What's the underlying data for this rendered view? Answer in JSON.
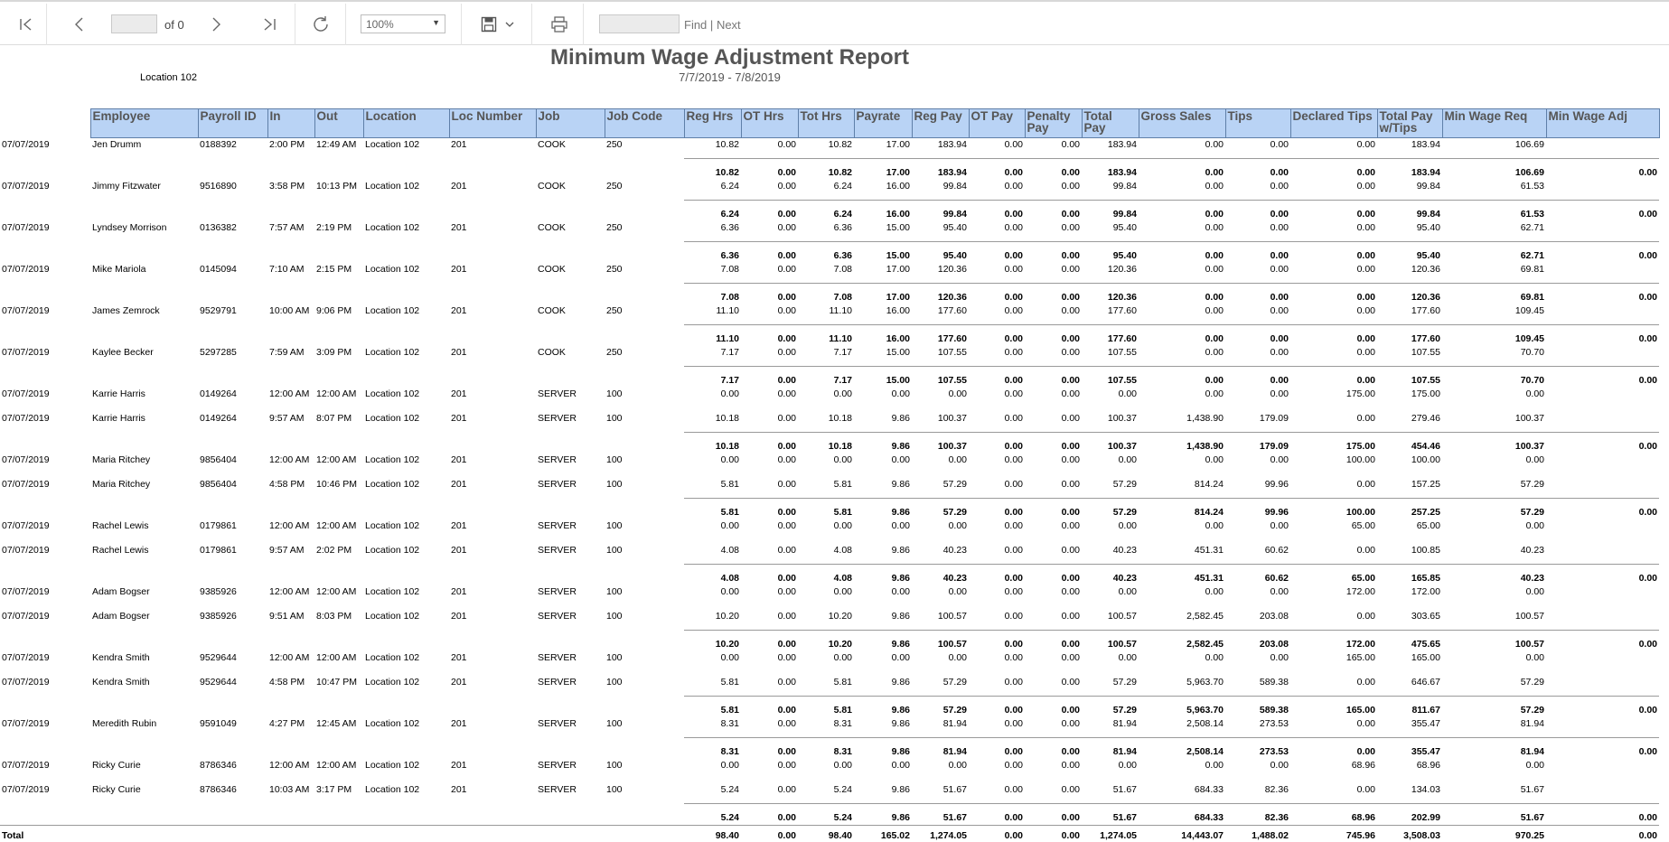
{
  "toolbar": {
    "page_value": "",
    "of_label": "of 0",
    "zoom_value": "100%",
    "find_value": "",
    "find_label": "Find",
    "divider": "|",
    "next_label": "Next",
    "icons": [
      "first-page-icon",
      "previous-page-icon",
      "next-page-icon",
      "last-page-icon",
      "refresh-icon",
      "save-icon",
      "chevron-down-icon",
      "print-icon"
    ]
  },
  "report": {
    "title": "Minimum Wage Adjustment Report",
    "date_range": "7/7/2019 - 7/8/2019",
    "location_label": "Location 102"
  },
  "table": {
    "headers": [
      "Employee",
      "Payroll ID",
      "In",
      "Out",
      "Location",
      "Loc Number",
      "Job",
      "Job Code",
      "Reg Hrs",
      "OT Hrs",
      "Tot Hrs",
      "Payrate",
      "Reg Pay",
      "OT Pay",
      "Penalty Pay",
      "Total Pay",
      "Gross Sales",
      "Tips",
      "Declared Tips",
      "Total Pay w/Tips",
      "Min Wage Req",
      "Min Wage Adj"
    ],
    "groups": [
      {
        "rows": [
          [
            "07/07/2019",
            "Jen Drumm",
            "0188392",
            "2:00 PM",
            "12:49 AM",
            "Location 102",
            "201",
            "COOK",
            "250",
            "10.82",
            "0.00",
            "10.82",
            "17.00",
            "183.94",
            "0.00",
            "0.00",
            "183.94",
            "0.00",
            "0.00",
            "0.00",
            "183.94",
            "106.69",
            ""
          ]
        ],
        "subtotal": [
          "10.82",
          "0.00",
          "10.82",
          "17.00",
          "183.94",
          "0.00",
          "0.00",
          "183.94",
          "0.00",
          "0.00",
          "0.00",
          "183.94",
          "106.69",
          "0.00"
        ]
      },
      {
        "rows": [
          [
            "07/07/2019",
            "Jimmy Fitzwater",
            "9516890",
            "3:58 PM",
            "10:13 PM",
            "Location 102",
            "201",
            "COOK",
            "250",
            "6.24",
            "0.00",
            "6.24",
            "16.00",
            "99.84",
            "0.00",
            "0.00",
            "99.84",
            "0.00",
            "0.00",
            "0.00",
            "99.84",
            "61.53",
            ""
          ]
        ],
        "subtotal": [
          "6.24",
          "0.00",
          "6.24",
          "16.00",
          "99.84",
          "0.00",
          "0.00",
          "99.84",
          "0.00",
          "0.00",
          "0.00",
          "99.84",
          "61.53",
          "0.00"
        ]
      },
      {
        "rows": [
          [
            "07/07/2019",
            "Lyndsey Morrison",
            "0136382",
            "7:57 AM",
            "2:19 PM",
            "Location 102",
            "201",
            "COOK",
            "250",
            "6.36",
            "0.00",
            "6.36",
            "15.00",
            "95.40",
            "0.00",
            "0.00",
            "95.40",
            "0.00",
            "0.00",
            "0.00",
            "95.40",
            "62.71",
            ""
          ]
        ],
        "subtotal": [
          "6.36",
          "0.00",
          "6.36",
          "15.00",
          "95.40",
          "0.00",
          "0.00",
          "95.40",
          "0.00",
          "0.00",
          "0.00",
          "95.40",
          "62.71",
          "0.00"
        ]
      },
      {
        "rows": [
          [
            "07/07/2019",
            "Mike Mariola",
            "0145094",
            "7:10 AM",
            "2:15 PM",
            "Location 102",
            "201",
            "COOK",
            "250",
            "7.08",
            "0.00",
            "7.08",
            "17.00",
            "120.36",
            "0.00",
            "0.00",
            "120.36",
            "0.00",
            "0.00",
            "0.00",
            "120.36",
            "69.81",
            ""
          ]
        ],
        "subtotal": [
          "7.08",
          "0.00",
          "7.08",
          "17.00",
          "120.36",
          "0.00",
          "0.00",
          "120.36",
          "0.00",
          "0.00",
          "0.00",
          "120.36",
          "69.81",
          "0.00"
        ]
      },
      {
        "rows": [
          [
            "07/07/2019",
            "James Zemrock",
            "9529791",
            "10:00 AM",
            "9:06 PM",
            "Location 102",
            "201",
            "COOK",
            "250",
            "11.10",
            "0.00",
            "11.10",
            "16.00",
            "177.60",
            "0.00",
            "0.00",
            "177.60",
            "0.00",
            "0.00",
            "0.00",
            "177.60",
            "109.45",
            ""
          ]
        ],
        "subtotal": [
          "11.10",
          "0.00",
          "11.10",
          "16.00",
          "177.60",
          "0.00",
          "0.00",
          "177.60",
          "0.00",
          "0.00",
          "0.00",
          "177.60",
          "109.45",
          "0.00"
        ]
      },
      {
        "rows": [
          [
            "07/07/2019",
            "Kaylee Becker",
            "5297285",
            "7:59 AM",
            "3:09 PM",
            "Location 102",
            "201",
            "COOK",
            "250",
            "7.17",
            "0.00",
            "7.17",
            "15.00",
            "107.55",
            "0.00",
            "0.00",
            "107.55",
            "0.00",
            "0.00",
            "0.00",
            "107.55",
            "70.70",
            ""
          ]
        ],
        "subtotal": [
          "7.17",
          "0.00",
          "7.17",
          "15.00",
          "107.55",
          "0.00",
          "0.00",
          "107.55",
          "0.00",
          "0.00",
          "0.00",
          "107.55",
          "70.70",
          "0.00"
        ]
      },
      {
        "rows": [
          [
            "07/07/2019",
            "Karrie Harris",
            "0149264",
            "12:00 AM",
            "12:00 AM",
            "Location 102",
            "201",
            "SERVER",
            "100",
            "0.00",
            "0.00",
            "0.00",
            "0.00",
            "0.00",
            "0.00",
            "0.00",
            "0.00",
            "0.00",
            "0.00",
            "175.00",
            "175.00",
            "0.00",
            ""
          ],
          [
            "07/07/2019",
            "Karrie Harris",
            "0149264",
            "9:57 AM",
            "8:07 PM",
            "Location 102",
            "201",
            "SERVER",
            "100",
            "10.18",
            "0.00",
            "10.18",
            "9.86",
            "100.37",
            "0.00",
            "0.00",
            "100.37",
            "1,438.90",
            "179.09",
            "0.00",
            "279.46",
            "100.37",
            ""
          ]
        ],
        "subtotal": [
          "10.18",
          "0.00",
          "10.18",
          "9.86",
          "100.37",
          "0.00",
          "0.00",
          "100.37",
          "1,438.90",
          "179.09",
          "175.00",
          "454.46",
          "100.37",
          "0.00"
        ]
      },
      {
        "rows": [
          [
            "07/07/2019",
            "Maria Ritchey",
            "9856404",
            "12:00 AM",
            "12:00 AM",
            "Location 102",
            "201",
            "SERVER",
            "100",
            "0.00",
            "0.00",
            "0.00",
            "0.00",
            "0.00",
            "0.00",
            "0.00",
            "0.00",
            "0.00",
            "0.00",
            "100.00",
            "100.00",
            "0.00",
            ""
          ],
          [
            "07/07/2019",
            "Maria Ritchey",
            "9856404",
            "4:58 PM",
            "10:46 PM",
            "Location 102",
            "201",
            "SERVER",
            "100",
            "5.81",
            "0.00",
            "5.81",
            "9.86",
            "57.29",
            "0.00",
            "0.00",
            "57.29",
            "814.24",
            "99.96",
            "0.00",
            "157.25",
            "57.29",
            ""
          ]
        ],
        "subtotal": [
          "5.81",
          "0.00",
          "5.81",
          "9.86",
          "57.29",
          "0.00",
          "0.00",
          "57.29",
          "814.24",
          "99.96",
          "100.00",
          "257.25",
          "57.29",
          "0.00"
        ]
      },
      {
        "rows": [
          [
            "07/07/2019",
            "Rachel Lewis",
            "0179861",
            "12:00 AM",
            "12:00 AM",
            "Location 102",
            "201",
            "SERVER",
            "100",
            "0.00",
            "0.00",
            "0.00",
            "0.00",
            "0.00",
            "0.00",
            "0.00",
            "0.00",
            "0.00",
            "0.00",
            "65.00",
            "65.00",
            "0.00",
            ""
          ],
          [
            "07/07/2019",
            "Rachel Lewis",
            "0179861",
            "9:57 AM",
            "2:02 PM",
            "Location 102",
            "201",
            "SERVER",
            "100",
            "4.08",
            "0.00",
            "4.08",
            "9.86",
            "40.23",
            "0.00",
            "0.00",
            "40.23",
            "451.31",
            "60.62",
            "0.00",
            "100.85",
            "40.23",
            ""
          ]
        ],
        "subtotal": [
          "4.08",
          "0.00",
          "4.08",
          "9.86",
          "40.23",
          "0.00",
          "0.00",
          "40.23",
          "451.31",
          "60.62",
          "65.00",
          "165.85",
          "40.23",
          "0.00"
        ]
      },
      {
        "rows": [
          [
            "07/07/2019",
            "Adam Bogser",
            "9385926",
            "12:00 AM",
            "12:00 AM",
            "Location 102",
            "201",
            "SERVER",
            "100",
            "0.00",
            "0.00",
            "0.00",
            "0.00",
            "0.00",
            "0.00",
            "0.00",
            "0.00",
            "0.00",
            "0.00",
            "172.00",
            "172.00",
            "0.00",
            ""
          ],
          [
            "07/07/2019",
            "Adam Bogser",
            "9385926",
            "9:51 AM",
            "8:03 PM",
            "Location 102",
            "201",
            "SERVER",
            "100",
            "10.20",
            "0.00",
            "10.20",
            "9.86",
            "100.57",
            "0.00",
            "0.00",
            "100.57",
            "2,582.45",
            "203.08",
            "0.00",
            "303.65",
            "100.57",
            ""
          ]
        ],
        "subtotal": [
          "10.20",
          "0.00",
          "10.20",
          "9.86",
          "100.57",
          "0.00",
          "0.00",
          "100.57",
          "2,582.45",
          "203.08",
          "172.00",
          "475.65",
          "100.57",
          "0.00"
        ]
      },
      {
        "rows": [
          [
            "07/07/2019",
            "Kendra Smith",
            "9529644",
            "12:00 AM",
            "12:00 AM",
            "Location 102",
            "201",
            "SERVER",
            "100",
            "0.00",
            "0.00",
            "0.00",
            "0.00",
            "0.00",
            "0.00",
            "0.00",
            "0.00",
            "0.00",
            "0.00",
            "165.00",
            "165.00",
            "0.00",
            ""
          ],
          [
            "07/07/2019",
            "Kendra Smith",
            "9529644",
            "4:58 PM",
            "10:47 PM",
            "Location 102",
            "201",
            "SERVER",
            "100",
            "5.81",
            "0.00",
            "5.81",
            "9.86",
            "57.29",
            "0.00",
            "0.00",
            "57.29",
            "5,963.70",
            "589.38",
            "0.00",
            "646.67",
            "57.29",
            ""
          ]
        ],
        "subtotal": [
          "5.81",
          "0.00",
          "5.81",
          "9.86",
          "57.29",
          "0.00",
          "0.00",
          "57.29",
          "5,963.70",
          "589.38",
          "165.00",
          "811.67",
          "57.29",
          "0.00"
        ]
      },
      {
        "rows": [
          [
            "07/07/2019",
            "Meredith Rubin",
            "9591049",
            "4:27 PM",
            "12:45 AM",
            "Location 102",
            "201",
            "SERVER",
            "100",
            "8.31",
            "0.00",
            "8.31",
            "9.86",
            "81.94",
            "0.00",
            "0.00",
            "81.94",
            "2,508.14",
            "273.53",
            "0.00",
            "355.47",
            "81.94",
            ""
          ]
        ],
        "subtotal": [
          "8.31",
          "0.00",
          "8.31",
          "9.86",
          "81.94",
          "0.00",
          "0.00",
          "81.94",
          "2,508.14",
          "273.53",
          "0.00",
          "355.47",
          "81.94",
          "0.00"
        ]
      },
      {
        "rows": [
          [
            "07/07/2019",
            "Ricky Curie",
            "8786346",
            "12:00 AM",
            "12:00 AM",
            "Location 102",
            "201",
            "SERVER",
            "100",
            "0.00",
            "0.00",
            "0.00",
            "0.00",
            "0.00",
            "0.00",
            "0.00",
            "0.00",
            "0.00",
            "0.00",
            "68.96",
            "68.96",
            "0.00",
            ""
          ],
          [
            "07/07/2019",
            "Ricky Curie",
            "8786346",
            "10:03 AM",
            "3:17 PM",
            "Location 102",
            "201",
            "SERVER",
            "100",
            "5.24",
            "0.00",
            "5.24",
            "9.86",
            "51.67",
            "0.00",
            "0.00",
            "51.67",
            "684.33",
            "82.36",
            "0.00",
            "134.03",
            "51.67",
            ""
          ]
        ],
        "subtotal": [
          "5.24",
          "0.00",
          "5.24",
          "9.86",
          "51.67",
          "0.00",
          "0.00",
          "51.67",
          "684.33",
          "82.36",
          "68.96",
          "202.99",
          "51.67",
          "0.00"
        ]
      }
    ],
    "total_label": "Total",
    "total": [
      "98.40",
      "0.00",
      "98.40",
      "165.02",
      "1,274.05",
      "0.00",
      "0.00",
      "1,274.05",
      "14,443.07",
      "1,488.02",
      "745.96",
      "3,508.03",
      "970.25",
      "0.00"
    ]
  }
}
